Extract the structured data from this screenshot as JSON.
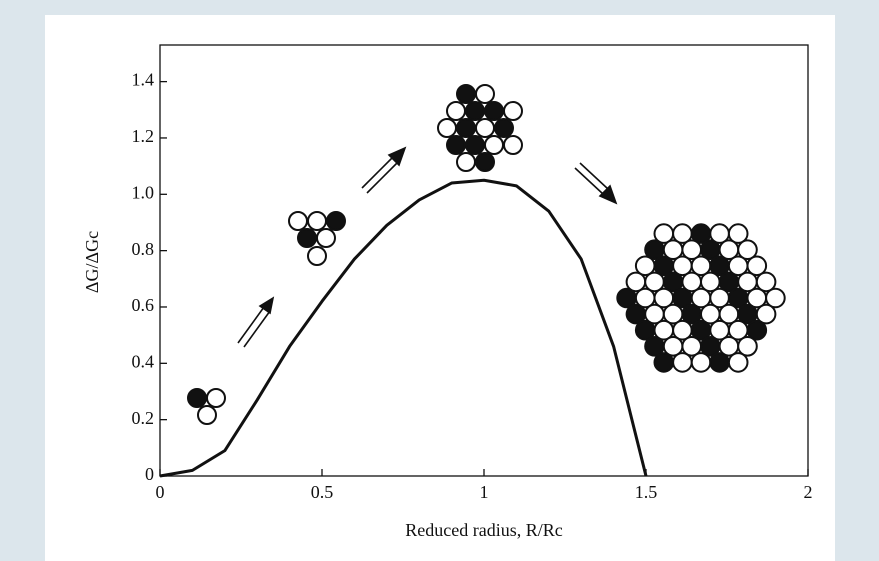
{
  "chart_data": {
    "type": "line",
    "x_label": "Reduced radius, R/Rc",
    "y_label": "ΔG/ΔGc",
    "x": [
      0,
      0.1,
      0.2,
      0.3,
      0.4,
      0.5,
      0.6,
      0.7,
      0.8,
      0.9,
      1.0,
      1.1,
      1.2,
      1.3,
      1.4,
      1.5
    ],
    "series": [
      {
        "color": "#111111",
        "values": [
          0,
          0.02,
          0.09,
          0.27,
          0.46,
          0.62,
          0.77,
          0.89,
          0.98,
          1.04,
          1.05,
          1.03,
          0.94,
          0.77,
          0.46,
          0
        ]
      }
    ],
    "xlim": [
      0,
      2
    ],
    "ylim": [
      0,
      1.53
    ],
    "xticks": [
      0,
      0.5,
      1,
      1.5,
      2
    ],
    "yticks": [
      0,
      0.2,
      0.4,
      0.6,
      0.8,
      {
        "value": 1,
        "label": "1.0"
      },
      1.2,
      1.4
    ]
  }
}
